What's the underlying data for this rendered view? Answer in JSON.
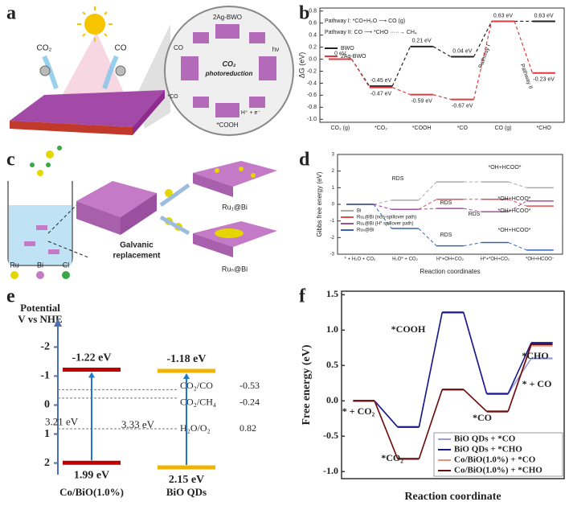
{
  "panel_labels": [
    "a",
    "b",
    "c",
    "d",
    "e",
    "f"
  ],
  "panel_a": {
    "labels": [
      "CO₂",
      "CO",
      "2Ag-BWO",
      "CO₂",
      "photoreduction",
      "hν",
      "*COOH",
      "H⁺ + e⁻",
      "CO",
      "*CO"
    ]
  },
  "panel_c": {
    "legend": [
      "Ru",
      "Bi",
      "Cl"
    ],
    "legend_colors": [
      "#e6d600",
      "#c57ac8",
      "#3aa845"
    ],
    "labels": [
      "Ru₁@Bi",
      "Ruₙ@Bi",
      "Galvanic",
      "replacement"
    ]
  },
  "chart_data": [
    {
      "type": "energy-diagram",
      "ylabel": "ΔG (eV)",
      "connector": "dashed",
      "categories": [
        "CO₂ (g)",
        "*CO₂",
        "*COOH",
        "*CO",
        "CO (g)",
        "*CHO"
      ],
      "ylim": [
        -1.05,
        0.85
      ],
      "yticks": [
        0.8,
        0.6,
        0.4,
        0.2,
        {
          "value": 0,
          "label": "0.0"
        },
        -0.2,
        -0.4,
        -0.6,
        -0.8,
        {
          "value": -1,
          "label": "-1.0"
        }
      ],
      "annotations": [
        "Pathway I: *CO+H₂O ⟶ CO (g)",
        "Pathway II: CO ⟶ *CHO ·····→ CH₄",
        "Pathway I",
        "Pathway II"
      ],
      "legend": "upper left",
      "series": [
        {
          "name": "BWO",
          "color": "#222222",
          "values": [
            0,
            -0.45,
            0.21,
            0.04,
            0.63,
            0.63
          ],
          "value_labels": [
            "0 eV",
            "-0.45 eV",
            "0.21 eV",
            "0.04 eV",
            "0.63 eV",
            "0.63 eV"
          ]
        },
        {
          "name": "2Ag-BWO",
          "color": "#e0393e",
          "values": [
            0,
            -0.47,
            -0.59,
            -0.67,
            0.63,
            -0.23
          ],
          "value_labels": [
            null,
            "-0.47 eV",
            "-0.59 eV",
            "-0.67 eV",
            null,
            "-0.23 eV"
          ]
        }
      ]
    },
    {
      "type": "energy-diagram",
      "ylabel": "Gibbs free energy (eV)",
      "xlabel": "Reaction coordinates",
      "connector": "dashed",
      "categories": [
        "* + H₂O + CO₂",
        "H₂O* + CO₂",
        "H*+OH+CO₂",
        "H*+*OH+CO₂",
        "*OH+HCOO⁻"
      ],
      "ylim": [
        -3,
        3
      ],
      "yticks": [
        3,
        2,
        1,
        0,
        -1,
        -2,
        -3
      ],
      "annotations": [
        "RDS",
        "RDS",
        "RDS",
        "RDS",
        "*OH+HCOO*",
        "*OH+HCOO*",
        "*OH+HCOO*",
        "*OH+HCOO*"
      ],
      "legend": "upper left",
      "series": [
        {
          "name": "Bi",
          "color": "#aaaaaa",
          "values": [
            0,
            0.25,
            1.35,
            1.35,
            1.0
          ]
        },
        {
          "name": "Ru₁@Bi (non-spillover path)",
          "color": "#e05050",
          "values": [
            0,
            -0.3,
            0.3,
            0.3,
            -0.1
          ]
        },
        {
          "name": "Ru₁@Bi (H* spillover path)",
          "color": "#a050a0",
          "values": [
            0,
            -0.3,
            -0.25,
            -0.45,
            0.2
          ]
        },
        {
          "name": "Ruₙ@Bi",
          "color": "#3464b4",
          "values": [
            0,
            -1.45,
            -2.5,
            -2.3,
            -2.75
          ]
        }
      ]
    },
    {
      "type": "band-diagram",
      "ylabel": [
        "Potential",
        "V vs NHE"
      ],
      "ylim": [
        -2.4,
        2.4
      ],
      "inverted": true,
      "yticks": [
        -2,
        -1,
        0,
        1,
        2
      ],
      "series": [
        {
          "name": "Co/BiO(1.0%)",
          "color": "#c00000",
          "values": [
            -1.22,
            1.99
          ],
          "value_labels": [
            "-1.22 eV",
            "1.99 eV"
          ],
          "gap_label": "3.21 eV"
        },
        {
          "name": "BiO QDs",
          "color": "#f0b400",
          "values": [
            -1.18,
            2.15
          ],
          "value_labels": [
            "-1.18 eV",
            "2.15 eV"
          ],
          "gap_label": "3.33 eV"
        }
      ],
      "references": [
        {
          "name": "CO₂/CO",
          "value": -0.53
        },
        {
          "name": "CO₂/CH₄",
          "value": -0.24
        },
        {
          "name": "H₂O/O₂",
          "value": 0.82
        }
      ]
    },
    {
      "type": "energy-diagram",
      "ylabel": "Free energy (eV)",
      "xlabel": "Reaction coordinate",
      "connector": "solid",
      "ylim": [
        -1.1,
        1.55
      ],
      "yticks": [
        {
          "value": -1,
          "label": "-1.0"
        },
        -0.5,
        {
          "value": 0,
          "label": "0.0"
        },
        0.5,
        {
          "value": 1,
          "label": "1.0"
        },
        1.5
      ],
      "annotations": [
        "* + CO₂",
        "*CO₂",
        "*COOH",
        "*CO",
        "*CHO",
        "* + CO"
      ],
      "legend": "lower right",
      "series": [
        {
          "name": "BiO QDs + *CO",
          "color": "#9a9ae0",
          "values": [
            0,
            -0.37,
            1.25,
            0.1,
            0.6
          ]
        },
        {
          "name": "BiO QDs + *CHO",
          "color": "#1a1a8c",
          "values": [
            0,
            -0.37,
            1.25,
            0.1,
            0.82
          ]
        },
        {
          "name": "Co/BiO(1.0%) + *CO",
          "color": "#e8907a",
          "values": [
            0,
            -0.82,
            0.16,
            -0.15,
            0.78
          ]
        },
        {
          "name": "Co/BiO(1.0%) + *CHO",
          "color": "#6b1010",
          "values": [
            0,
            -0.82,
            0.16,
            -0.15,
            0.8
          ]
        }
      ]
    }
  ]
}
